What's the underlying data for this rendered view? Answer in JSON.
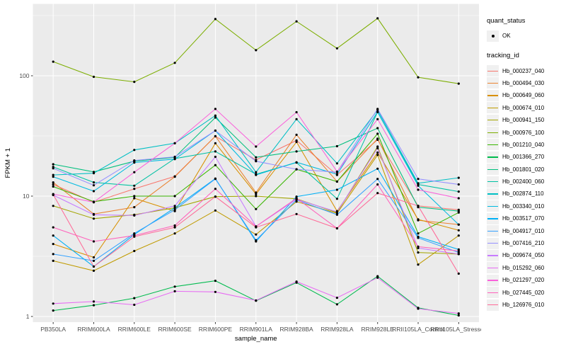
{
  "figure": {
    "background": "#FFFFFF",
    "panel_background": "#EBEBEB",
    "grid_color": "#FFFFFF",
    "tick_label_color": "#4D4D4D",
    "point_color": "#000000"
  },
  "axes": {
    "xlabel": "sample_name",
    "ylabel": "FPKM + 1",
    "y_tick_labels": [
      "1",
      "10",
      "100"
    ],
    "y_tick_values": [
      1,
      10,
      100
    ],
    "y_minor_values": [
      3.162,
      31.62,
      316.2
    ]
  },
  "legend": {
    "quant_status": {
      "title": "quant_status",
      "items": [
        {
          "label": "OK",
          "marker": "point",
          "color": "#000000"
        }
      ]
    },
    "tracking_id": {
      "title": "tracking_id"
    }
  },
  "chart_data": {
    "type": "line",
    "title": "",
    "xlabel": "sample_name",
    "ylabel": "FPKM + 1",
    "y_scale": "log10",
    "ylim": [
      1,
      400
    ],
    "grid": true,
    "legend_position": "right",
    "marker": "black-point",
    "categories": [
      "PB350LA",
      "RRIM600LA",
      "RRIM600LE",
      "RRIM600SE",
      "RRIM600PE",
      "RRIM901LA",
      "RRIM928BA",
      "RRIM928LA",
      "RRIM928LE",
      "RRII105LA_Control",
      "RRII105LA_Stressed"
    ],
    "series": [
      {
        "name": "Hb_000237_040",
        "color": "#F8766D",
        "values": [
          12.5,
          8.9,
          11.5,
          14.6,
          31.4,
          20.0,
          29.0,
          15.0,
          29.4,
          8.3,
          7.7
        ]
      },
      {
        "name": "Hb_000494_030",
        "color": "#EA8331",
        "values": [
          13.0,
          7.1,
          8.1,
          14.5,
          31.5,
          10.7,
          32.3,
          13.2,
          30.0,
          6.3,
          5.8
        ]
      },
      {
        "name": "Hb_000649_060",
        "color": "#D89000",
        "values": [
          4.0,
          3.1,
          9.6,
          7.5,
          27.5,
          10.4,
          28.2,
          7.5,
          23.0,
          6.4,
          5.2
        ]
      },
      {
        "name": "Hb_000674_010",
        "color": "#C09B00",
        "values": [
          2.9,
          2.4,
          3.5,
          4.9,
          7.6,
          4.8,
          9.0,
          7.2,
          22.0,
          2.7,
          4.7
        ]
      },
      {
        "name": "Hb_000941_150",
        "color": "#A3A500",
        "values": [
          8.3,
          6.5,
          7.0,
          8.0,
          9.9,
          10.0,
          9.5,
          7.3,
          25.8,
          3.4,
          3.3
        ]
      },
      {
        "name": "Hb_000976_100",
        "color": "#7CAE00",
        "values": [
          131,
          98,
          89,
          128,
          296,
          163,
          283,
          169,
          300,
          97,
          86
        ]
      },
      {
        "name": "Hb_001210_040",
        "color": "#39B600",
        "values": [
          12.0,
          9.0,
          10.0,
          10.0,
          18.1,
          7.8,
          16.7,
          13.2,
          33.0,
          4.9,
          7.3
        ]
      },
      {
        "name": "Hb_001366_270",
        "color": "#00BB4E",
        "values": [
          1.12,
          1.24,
          1.42,
          1.77,
          1.98,
          1.35,
          1.91,
          1.26,
          2.16,
          1.18,
          1.02
        ]
      },
      {
        "name": "Hb_001801_020",
        "color": "#00BF7D",
        "values": [
          18.4,
          15.9,
          19.5,
          21.0,
          45.0,
          21.0,
          23.5,
          26.0,
          36.7,
          8.1,
          7.5
        ]
      },
      {
        "name": "Hb_002400_060",
        "color": "#00C1A3",
        "values": [
          17.5,
          13.0,
          12.2,
          20.5,
          23.5,
          15.2,
          19.0,
          9.5,
          50.0,
          12.5,
          10.9
        ]
      },
      {
        "name": "Hb_002874_110",
        "color": "#00BFC4",
        "values": [
          15.0,
          15.5,
          24.2,
          27.5,
          46.7,
          15.8,
          43.6,
          18.7,
          52.0,
          12.8,
          14.2
        ]
      },
      {
        "name": "Hb_003340_010",
        "color": "#00BAE0",
        "values": [
          14.5,
          11.0,
          19.0,
          20.3,
          35.0,
          15.0,
          19.1,
          15.2,
          50.0,
          12.2,
          5.8
        ]
      },
      {
        "name": "Hb_003517_070",
        "color": "#00B0F6",
        "values": [
          4.7,
          2.6,
          4.8,
          8.0,
          14.0,
          4.2,
          9.9,
          11.3,
          16.9,
          4.6,
          3.6
        ]
      },
      {
        "name": "Hb_004917_010",
        "color": "#35A2FF",
        "values": [
          3.3,
          2.9,
          4.9,
          7.7,
          13.9,
          4.3,
          9.3,
          7.0,
          13.9,
          4.5,
          3.4
        ]
      },
      {
        "name": "Hb_007416_210",
        "color": "#9590FF",
        "values": [
          17.0,
          12.3,
          19.8,
          21.2,
          35.0,
          19.5,
          16.7,
          15.8,
          53.0,
          13.9,
          12.5
        ]
      },
      {
        "name": "Hb_009674_050",
        "color": "#C77CFF",
        "values": [
          10.2,
          7.0,
          6.9,
          8.3,
          21.2,
          5.6,
          9.4,
          7.4,
          25.0,
          3.7,
          3.3
        ]
      },
      {
        "name": "Hb_015292_060",
        "color": "#E76BF3",
        "values": [
          1.28,
          1.33,
          1.25,
          1.62,
          1.6,
          1.36,
          1.95,
          1.43,
          2.1,
          1.16,
          1.06
        ]
      },
      {
        "name": "Hb_021297_020",
        "color": "#FA62DB",
        "values": [
          10.4,
          8.9,
          15.8,
          27.5,
          53.0,
          25.8,
          49.8,
          16.0,
          43.6,
          11.3,
          9.6
        ]
      },
      {
        "name": "Hb_027445_020",
        "color": "#FF62BC",
        "values": [
          5.5,
          4.2,
          4.7,
          5.7,
          11.5,
          5.6,
          9.6,
          5.4,
          12.5,
          3.8,
          3.5
        ]
      },
      {
        "name": "Hb_126976_010",
        "color": "#FF6A98",
        "values": [
          10.3,
          2.6,
          4.6,
          5.5,
          9.9,
          5.5,
          7.1,
          5.4,
          10.6,
          8.3,
          2.27
        ]
      }
    ]
  }
}
